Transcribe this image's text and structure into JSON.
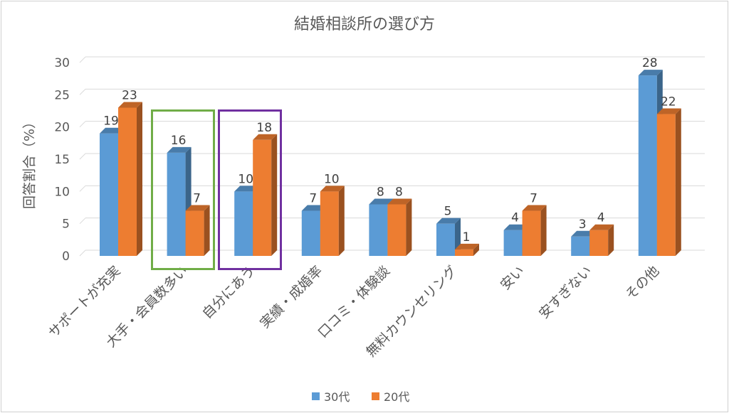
{
  "chart_data": {
    "type": "bar",
    "title": "結婚相談所の選び方",
    "ylabel": "回答割合（%）",
    "xlabel": "",
    "ylim": [
      0,
      30
    ],
    "yticks": [
      0,
      5,
      10,
      15,
      20,
      25,
      30
    ],
    "grid": true,
    "legend_position": "bottom",
    "categories": [
      "サポートが充実",
      "大手・会員数多い",
      "自分にあう",
      "実績・成婚率",
      "口コミ・体験談",
      "無料カウンセリング",
      "安い",
      "安すぎない",
      "その他"
    ],
    "series": [
      {
        "name": "30代",
        "color": "#5b9bd5",
        "values": [
          19,
          16,
          10,
          7,
          8,
          5,
          4,
          3,
          28
        ]
      },
      {
        "name": "20代",
        "color": "#ed7d31",
        "values": [
          23,
          7,
          18,
          10,
          8,
          1,
          7,
          4,
          22
        ]
      }
    ],
    "highlights": [
      {
        "category": "大手・会員数多い",
        "color": "#70ad47"
      },
      {
        "category": "自分にあう",
        "color": "#7030a0"
      }
    ]
  }
}
